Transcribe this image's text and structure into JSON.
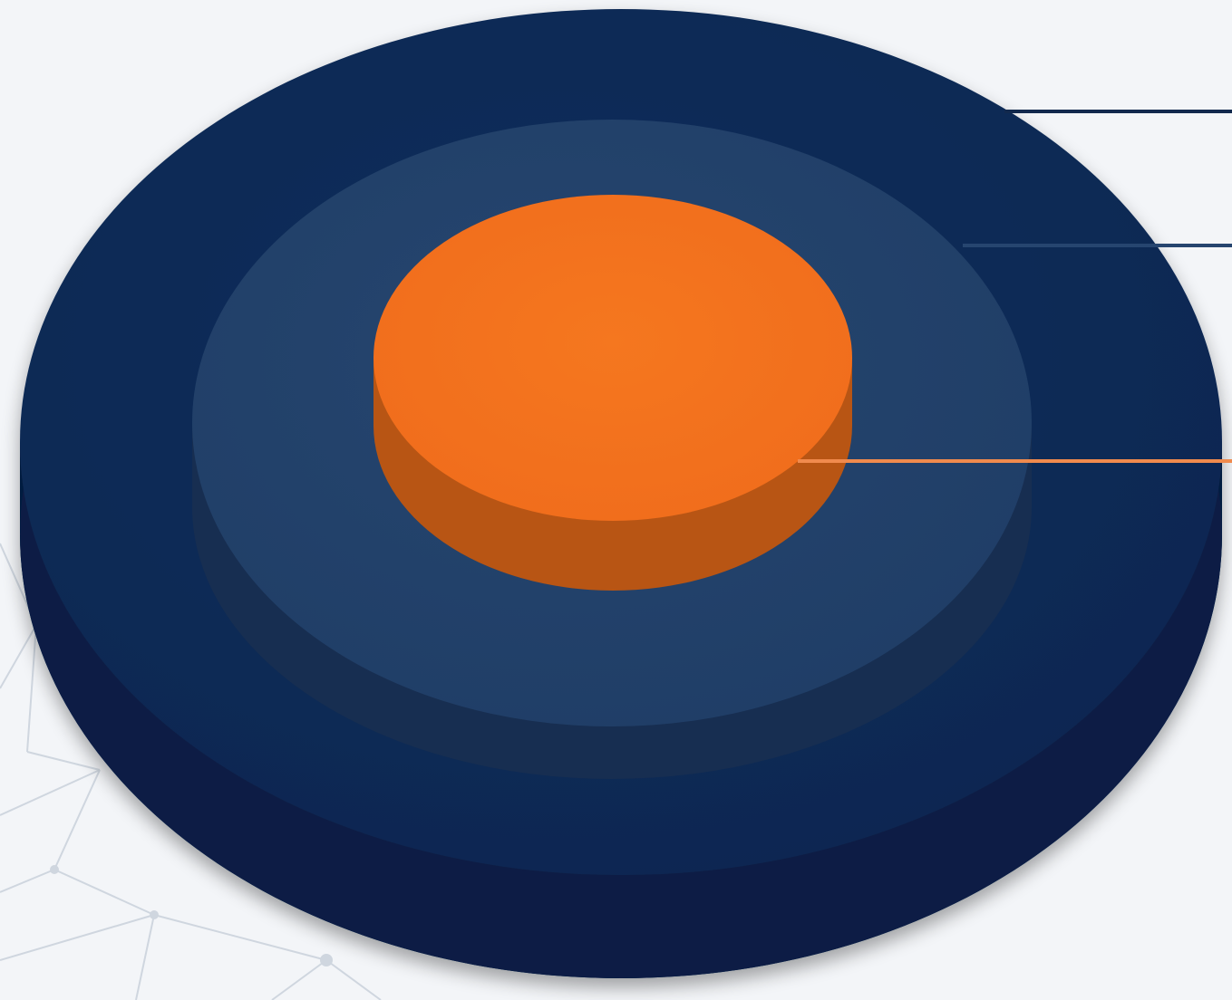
{
  "diagram": {
    "type": "concentric-layered-discs",
    "layers": [
      {
        "id": "outer",
        "color_top": "#0c2a55",
        "color_side": "#061d40"
      },
      {
        "id": "middle",
        "color_top": "#213f69",
        "color_side": "#182f52"
      },
      {
        "id": "inner",
        "color_top": "#f47020",
        "color_side": "#b75514"
      }
    ],
    "leader_lines": [
      {
        "layer": "outer",
        "color": "#12294d"
      },
      {
        "layer": "middle",
        "color": "#26456f"
      },
      {
        "layer": "inner",
        "color": "#f08a4d"
      }
    ],
    "background": {
      "color": "#f3f5f8",
      "network_pattern_color": "#cfd6df"
    }
  }
}
